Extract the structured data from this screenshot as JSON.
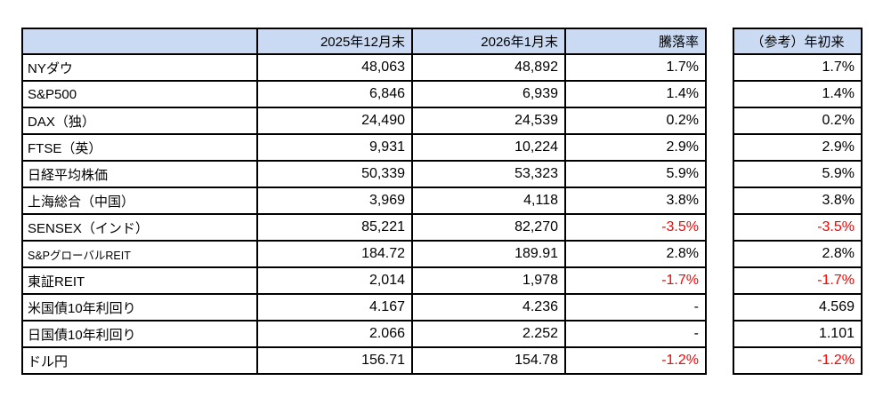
{
  "chart_data": {
    "type": "table",
    "title": "",
    "columns": [
      "",
      "2025年12月末",
      "2026年1月末",
      "騰落率",
      "（参考）年初来"
    ],
    "rows": [
      {
        "label": "NYダウ",
        "dec2025": "48,063",
        "jan2026": "48,892",
        "change": "1.7%",
        "ytd": "1.7%",
        "change_negative": false,
        "ytd_negative": false,
        "small_label": false
      },
      {
        "label": "S&P500",
        "dec2025": "6,846",
        "jan2026": "6,939",
        "change": "1.4%",
        "ytd": "1.4%",
        "change_negative": false,
        "ytd_negative": false,
        "small_label": false
      },
      {
        "label": "DAX（独）",
        "dec2025": "24,490",
        "jan2026": "24,539",
        "change": "0.2%",
        "ytd": "0.2%",
        "change_negative": false,
        "ytd_negative": false,
        "small_label": false
      },
      {
        "label": "FTSE（英）",
        "dec2025": "9,931",
        "jan2026": "10,224",
        "change": "2.9%",
        "ytd": "2.9%",
        "change_negative": false,
        "ytd_negative": false,
        "small_label": false
      },
      {
        "label": "日経平均株価",
        "dec2025": "50,339",
        "jan2026": "53,323",
        "change": "5.9%",
        "ytd": "5.9%",
        "change_negative": false,
        "ytd_negative": false,
        "small_label": false
      },
      {
        "label": "上海総合（中国）",
        "dec2025": "3,969",
        "jan2026": "4,118",
        "change": "3.8%",
        "ytd": "3.8%",
        "change_negative": false,
        "ytd_negative": false,
        "small_label": false
      },
      {
        "label": "SENSEX（インド）",
        "dec2025": "85,221",
        "jan2026": "82,270",
        "change": "-3.5%",
        "ytd": "-3.5%",
        "change_negative": true,
        "ytd_negative": true,
        "small_label": false
      },
      {
        "label": "S&PグローバルREIT",
        "dec2025": "184.72",
        "jan2026": "189.91",
        "change": "2.8%",
        "ytd": "2.8%",
        "change_negative": false,
        "ytd_negative": false,
        "small_label": true
      },
      {
        "label": "東証REIT",
        "dec2025": "2,014",
        "jan2026": "1,978",
        "change": "-1.7%",
        "ytd": "-1.7%",
        "change_negative": true,
        "ytd_negative": true,
        "small_label": false
      },
      {
        "label": "米国債10年利回り",
        "dec2025": "4.167",
        "jan2026": "4.236",
        "change": "-",
        "ytd": "4.569",
        "change_negative": false,
        "ytd_negative": false,
        "small_label": false
      },
      {
        "label": "日国債10年利回り",
        "dec2025": "2.066",
        "jan2026": "2.252",
        "change": "-",
        "ytd": "1.101",
        "change_negative": false,
        "ytd_negative": false,
        "small_label": false
      },
      {
        "label": "ドル円",
        "dec2025": "156.71",
        "jan2026": "154.78",
        "change": "-1.2%",
        "ytd": "-1.2%",
        "change_negative": true,
        "ytd_negative": true,
        "small_label": false
      }
    ],
    "colors": {
      "header_bg": "#C9DAF2",
      "negative_text": "#FF0000",
      "text": "#000000",
      "border": "#000000"
    },
    "layout": {
      "legend": "none",
      "grid": "all-borders",
      "note": "main table and separate reference (year-to-date) column table"
    }
  }
}
